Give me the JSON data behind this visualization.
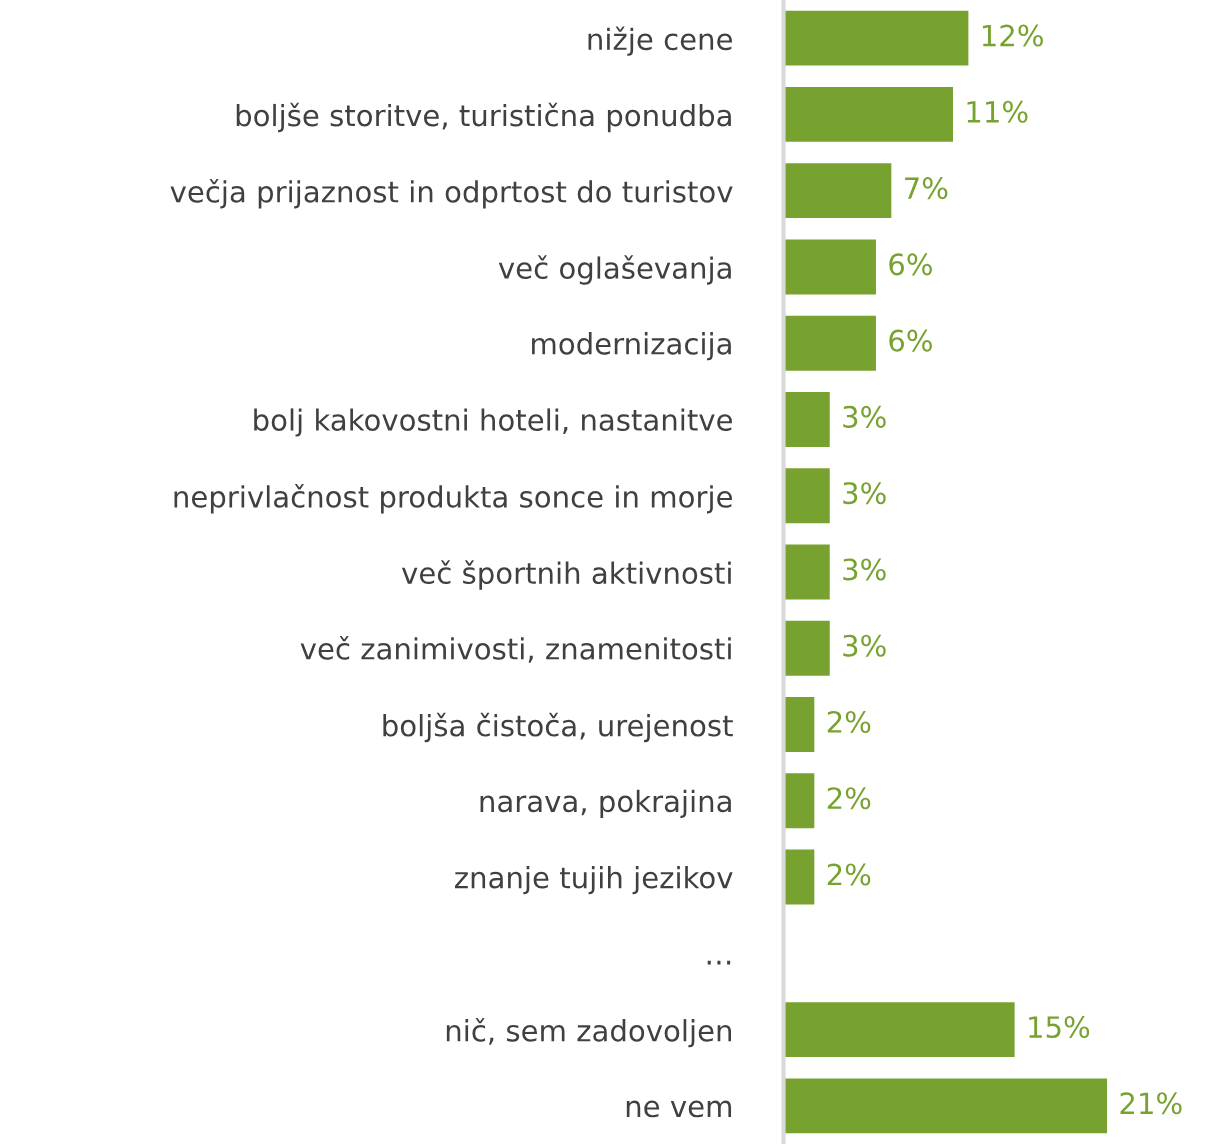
{
  "chart_data": {
    "type": "bar",
    "orientation": "horizontal",
    "data_labels": true,
    "color": "#77a22f",
    "categories": [
      "nižje cene",
      "boljše storitve, turistična ponudba",
      "večja prijaznost in odprtost do turistov",
      "več oglaševanja",
      "modernizacija",
      "bolj kakovostni hoteli, nastanitve",
      "neprivlačnost produkta sonce in morje",
      "več športnih aktivnosti",
      "več zanimivosti, znamenitosti",
      "boljša čistoča, urejenost",
      "narava, pokrajina",
      "znanje tujih jezikov",
      "…",
      "nič, sem zadovoljen",
      "ne vem"
    ],
    "values": [
      12,
      11,
      7,
      6,
      6,
      3,
      3,
      3,
      3,
      2,
      2,
      2,
      null,
      15,
      21
    ],
    "value_labels": [
      "12%",
      "11%",
      "7%",
      "6%",
      "6%",
      "3%",
      "3%",
      "3%",
      "3%",
      "2%",
      "2%",
      "2%",
      null,
      "15%",
      "21%"
    ]
  }
}
